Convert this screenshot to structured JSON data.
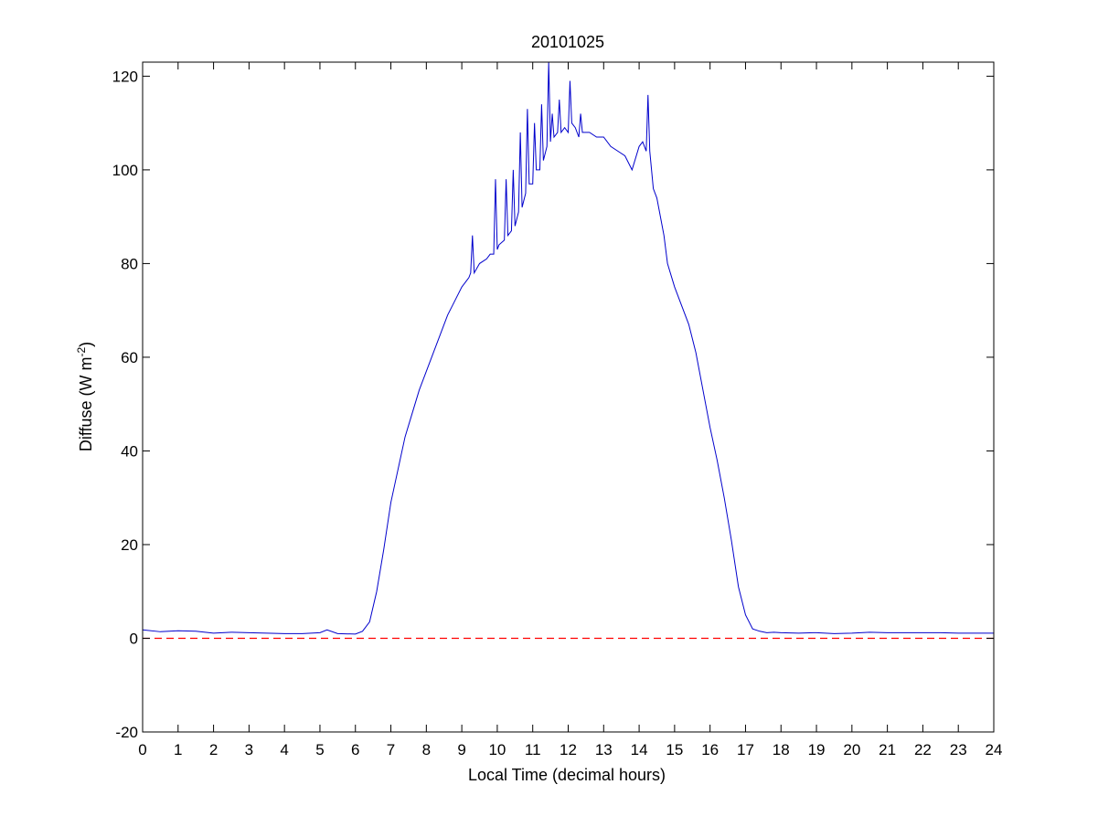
{
  "chart_data": {
    "type": "line",
    "title": "20101025",
    "xlabel": "Local Time (decimal hours)",
    "ylabel": {
      "base": "Diffuse (W m",
      "sup": "-2",
      "close": ")"
    },
    "xlim": [
      0,
      24
    ],
    "ylim": [
      -20,
      123
    ],
    "xticks": [
      0,
      1,
      2,
      3,
      4,
      5,
      6,
      7,
      8,
      9,
      10,
      11,
      12,
      13,
      14,
      15,
      16,
      17,
      18,
      19,
      20,
      21,
      22,
      23,
      24
    ],
    "yticks": [
      -20,
      0,
      20,
      40,
      60,
      80,
      100,
      120
    ],
    "grid": false,
    "series": [
      {
        "color": "#0000cc",
        "x": [
          0,
          0.5,
          1,
          1.5,
          2,
          2.5,
          3,
          3.5,
          4,
          4.5,
          5,
          5.2,
          5.5,
          6,
          6.2,
          6.4,
          6.6,
          6.8,
          7,
          7.2,
          7.4,
          7.6,
          7.8,
          8,
          8.2,
          8.4,
          8.6,
          8.8,
          9,
          9.2,
          9.25,
          9.3,
          9.35,
          9.5,
          9.7,
          9.8,
          9.9,
          9.95,
          10,
          10.05,
          10.2,
          10.25,
          10.3,
          10.4,
          10.45,
          10.5,
          10.6,
          10.65,
          10.7,
          10.8,
          10.85,
          10.9,
          11,
          11.05,
          11.1,
          11.2,
          11.25,
          11.3,
          11.4,
          11.45,
          11.5,
          11.55,
          11.6,
          11.7,
          11.75,
          11.8,
          11.9,
          12,
          12.05,
          12.1,
          12.2,
          12.3,
          12.35,
          12.4,
          12.6,
          12.8,
          13,
          13.2,
          13.4,
          13.6,
          13.8,
          14,
          14.1,
          14.2,
          14.25,
          14.3,
          14.35,
          14.4,
          14.5,
          14.6,
          14.7,
          14.8,
          15,
          15.2,
          15.4,
          15.6,
          15.8,
          16,
          16.2,
          16.4,
          16.6,
          16.8,
          17,
          17.2,
          17.4,
          17.6,
          17.8,
          18,
          18.5,
          19,
          19.5,
          20,
          20.5,
          21,
          21.5,
          22,
          22.5,
          23,
          23.5,
          24
        ],
        "y": [
          1.8,
          1.4,
          1.6,
          1.5,
          1.1,
          1.3,
          1.2,
          1.1,
          1.0,
          1.0,
          1.2,
          1.8,
          1.0,
          0.9,
          1.5,
          3.5,
          10,
          19,
          29,
          36,
          43,
          48,
          53,
          57,
          61,
          65,
          69,
          72,
          75,
          77,
          78,
          86,
          78,
          80,
          81,
          82,
          82,
          98,
          83,
          84,
          85,
          98,
          86,
          87,
          100,
          88,
          91,
          108,
          92,
          95,
          113,
          97,
          97,
          110,
          100,
          100,
          114,
          102,
          105,
          123,
          106,
          112,
          107,
          108,
          115,
          108,
          109,
          108,
          119,
          110,
          109,
          107,
          112,
          108,
          108,
          107,
          107,
          105,
          104,
          103,
          100,
          105,
          106,
          104,
          116,
          104,
          100,
          96,
          94,
          90,
          86,
          80,
          75,
          71,
          67,
          61,
          53,
          45,
          38,
          30,
          21,
          11,
          5,
          2,
          1.5,
          1.2,
          1.3,
          1.2,
          1.1,
          1.2,
          1.0,
          1.1,
          1.3,
          1.2,
          1.2,
          1.2,
          1.2,
          1.1,
          1.1,
          1.1
        ]
      },
      {
        "color": "#ff0000",
        "x": [
          0,
          24
        ],
        "y": [
          0,
          0
        ],
        "dashed": true
      }
    ]
  }
}
